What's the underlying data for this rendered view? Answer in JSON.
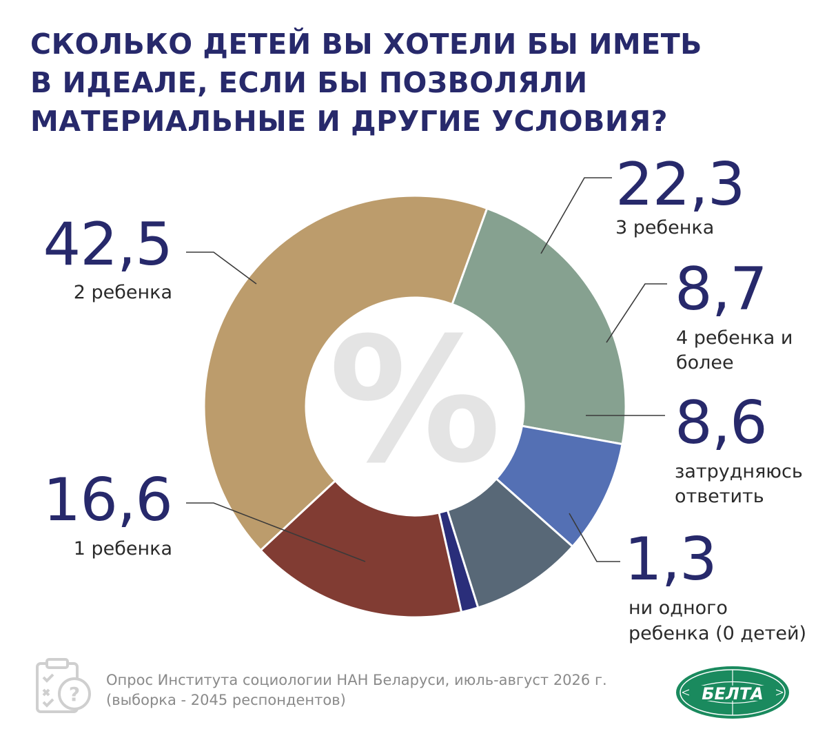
{
  "title_lines": [
    "СКОЛЬКО ДЕТЕЙ ВЫ ХОТЕЛИ БЫ ИМЕТЬ",
    "В ИДЕАЛЕ, ЕСЛИ БЫ ПОЗВОЛЯЛИ",
    "МАТЕРИАЛЬНЫЕ И ДРУГИЕ УСЛОВИЯ?"
  ],
  "center_symbol": "%",
  "chart_data": {
    "type": "pie",
    "style": "donut",
    "title": "СКОЛЬКО ДЕТЕЙ ВЫ ХОТЕЛИ БЫ ИМЕТЬ В ИДЕАЛЕ, ЕСЛИ БЫ ПОЗВОЛЯЛИ МАТЕРИАЛЬНЫЕ И ДРУГИЕ УСЛОВИЯ?",
    "unit": "%",
    "slices": [
      {
        "label": "3 ребенка",
        "value": 22.3,
        "value_text": "22,3",
        "color": "#86a190"
      },
      {
        "label": "4 ребенка и более",
        "value": 8.7,
        "value_text": "8,7",
        "color": "#5470b4"
      },
      {
        "label": "затрудняюсь ответить",
        "value": 8.6,
        "value_text": "8,6",
        "color": "#586877"
      },
      {
        "label": "ни одного ребенка (0 детей)",
        "value": 1.3,
        "value_text": "1,3",
        "color": "#2a2e7a"
      },
      {
        "label": "1 ребенка",
        "value": 16.6,
        "value_text": "16,6",
        "color": "#813c33"
      },
      {
        "label": "2 ребенка",
        "value": 42.5,
        "value_text": "42,5",
        "color": "#bc9c6c"
      }
    ]
  },
  "labels": {
    "s3": {
      "value": "22,3",
      "lines": [
        "3 ребенка"
      ]
    },
    "s4": {
      "value": "8,7",
      "lines": [
        "4 ребенка и",
        "более"
      ]
    },
    "sHard": {
      "value": "8,6",
      "lines": [
        "затрудняюсь",
        "ответить"
      ]
    },
    "s0": {
      "value": "1,3",
      "lines": [
        "ни одного",
        "ребенка (0 детей)"
      ]
    },
    "s1": {
      "value": "16,6",
      "lines": [
        "1 ребенка"
      ]
    },
    "s2": {
      "value": "42,5",
      "lines": [
        "2 ребенка"
      ]
    }
  },
  "footer": {
    "source_lines": [
      "Опрос Института социологии НАН Беларуси, июль-август 2026 г.",
      "(выборка - 2045 респондентов)"
    ],
    "icon": "clipboard-question-icon",
    "logo_text": "БЕЛТА",
    "logo_color": "#1a8a5e"
  },
  "colors": {
    "title": "#27296b",
    "value_text": "#27296b",
    "leader_line": "#3a3a3a",
    "center_symbol": "#e4e4e4"
  }
}
